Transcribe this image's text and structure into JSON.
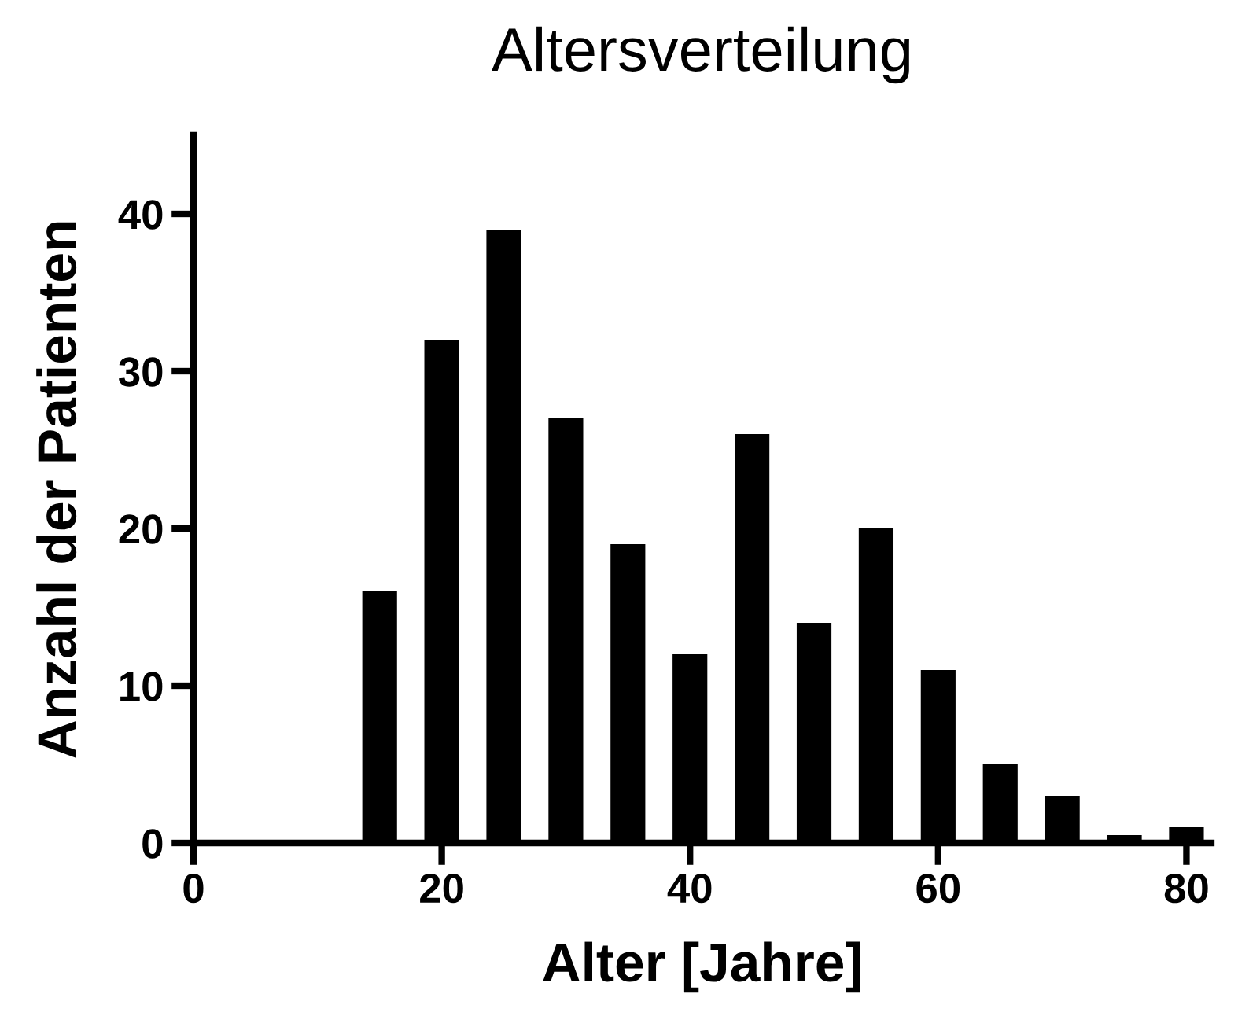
{
  "chart_data": {
    "type": "bar",
    "title": "Altersverteilung",
    "xlabel": "Alter [Jahre]",
    "ylabel": "Anzahl der Patienten",
    "x": [
      15,
      20,
      25,
      30,
      35,
      40,
      45,
      50,
      55,
      60,
      65,
      70,
      75,
      80
    ],
    "values": [
      16,
      32,
      39,
      27,
      19,
      12,
      26,
      14,
      20,
      11,
      5,
      3,
      0.5,
      1
    ],
    "color": "#000000",
    "xlim": [
      0,
      82
    ],
    "xticks": [
      0,
      20,
      40,
      60,
      80
    ],
    "ylim": [
      0,
      45
    ],
    "yticks": [
      0,
      10,
      20,
      30,
      40
    ],
    "grid": false
  }
}
